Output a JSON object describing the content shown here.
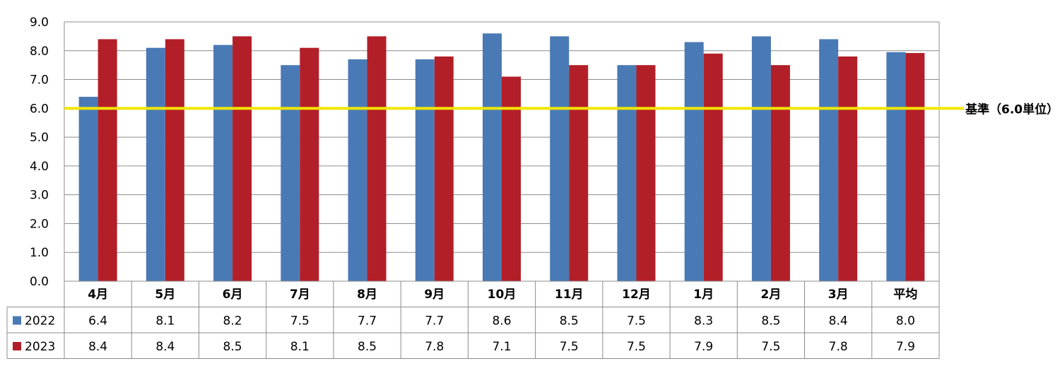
{
  "chart_data": {
    "type": "bar",
    "categories": [
      "4月",
      "5月",
      "6月",
      "7月",
      "8月",
      "9月",
      "10月",
      "11月",
      "12月",
      "1月",
      "2月",
      "3月",
      "平均"
    ],
    "series": [
      {
        "name": "2022",
        "color": "#4a7ab5",
        "values": [
          6.4,
          8.1,
          8.2,
          7.5,
          7.7,
          7.7,
          8.6,
          8.5,
          7.5,
          8.3,
          8.5,
          8.4,
          7.95
        ],
        "labels": [
          "6.4",
          "8.1",
          "8.2",
          "7.5",
          "7.7",
          "7.7",
          "8.6",
          "8.5",
          "7.5",
          "8.3",
          "8.5",
          "8.4",
          "8.0"
        ]
      },
      {
        "name": "2023",
        "color": "#b31f28",
        "values": [
          8.4,
          8.4,
          8.5,
          8.1,
          8.5,
          7.8,
          7.1,
          7.5,
          7.5,
          7.9,
          7.5,
          7.8,
          7.92
        ],
        "labels": [
          "8.4",
          "8.4",
          "8.5",
          "8.1",
          "8.5",
          "7.8",
          "7.1",
          "7.5",
          "7.5",
          "7.9",
          "7.5",
          "7.8",
          "7.9"
        ]
      }
    ],
    "ylim": [
      0,
      9
    ],
    "yticks": [
      "0.0",
      "1.0",
      "2.0",
      "3.0",
      "4.0",
      "5.0",
      "6.0",
      "7.0",
      "8.0",
      "9.0"
    ],
    "grid": true,
    "reference_line": {
      "value": 6.0,
      "label": "基準（6.0単位）",
      "color": "#f2e600"
    },
    "data_table": true
  }
}
